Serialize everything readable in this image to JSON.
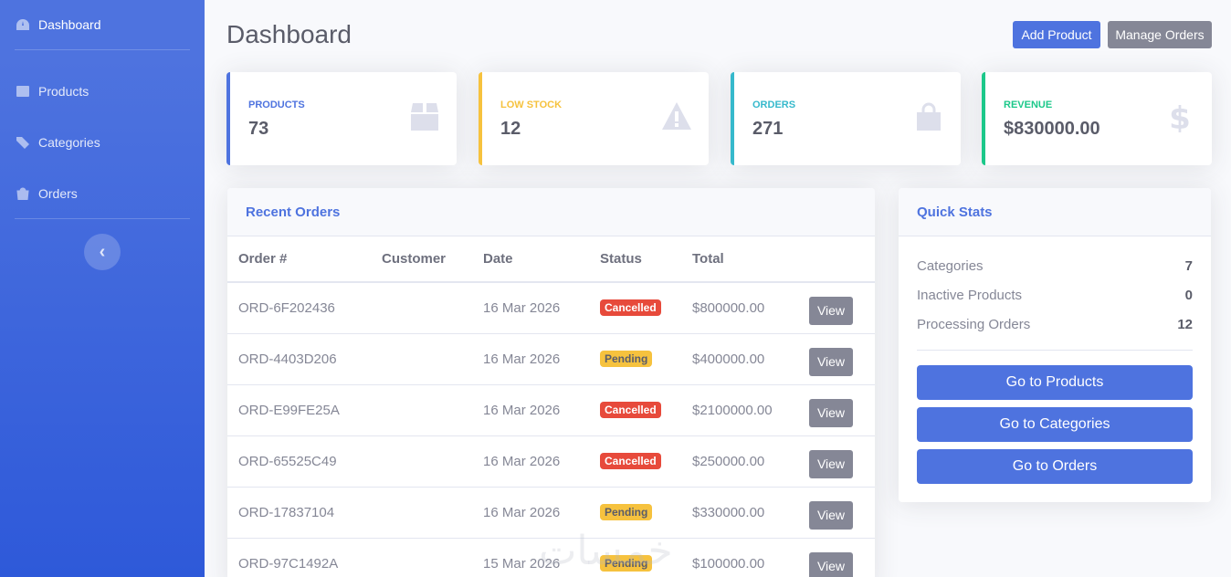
{
  "sidebar": {
    "items": [
      {
        "label": "Dashboard",
        "icon": "dashboard-icon"
      },
      {
        "label": "Products",
        "icon": "products-icon"
      },
      {
        "label": "Categories",
        "icon": "tags-icon"
      },
      {
        "label": "Orders",
        "icon": "bag-icon"
      }
    ],
    "toggle_icon": "chevron-left-icon",
    "toggle_glyph": "‹"
  },
  "header": {
    "title": "Dashboard",
    "add_product_label": "Add Product",
    "manage_orders_label": "Manage Orders"
  },
  "stats": [
    {
      "label": "PRODUCTS",
      "value": "73",
      "color": "#4e73df",
      "icon": "box-icon"
    },
    {
      "label": "LOW STOCK",
      "value": "12",
      "color": "#f6c23e",
      "icon": "warning-icon"
    },
    {
      "label": "ORDERS",
      "value": "271",
      "color": "#36b9cc",
      "icon": "shopping-bag-icon"
    },
    {
      "label": "REVENUE",
      "value": "$830000.00",
      "color": "#1cc88a",
      "icon": "dollar-icon"
    }
  ],
  "recent_orders": {
    "title": "Recent Orders",
    "columns": [
      "Order #",
      "Customer",
      "Date",
      "Status",
      "Total"
    ],
    "view_label": "View",
    "rows": [
      {
        "order": "ORD-6F202436",
        "customer": "",
        "date": "16 Mar 2026",
        "status": "Cancelled",
        "total": "$800000.00"
      },
      {
        "order": "ORD-4403D206",
        "customer": "",
        "date": "16 Mar 2026",
        "status": "Pending",
        "total": "$400000.00"
      },
      {
        "order": "ORD-E99FE25A",
        "customer": "",
        "date": "16 Mar 2026",
        "status": "Cancelled",
        "total": "$2100000.00"
      },
      {
        "order": "ORD-65525C49",
        "customer": "",
        "date": "16 Mar 2026",
        "status": "Cancelled",
        "total": "$250000.00"
      },
      {
        "order": "ORD-17837104",
        "customer": "",
        "date": "16 Mar 2026",
        "status": "Pending",
        "total": "$330000.00"
      },
      {
        "order": "ORD-97C1492A",
        "customer": "",
        "date": "15 Mar 2026",
        "status": "Pending",
        "total": "$100000.00"
      }
    ]
  },
  "quick_stats": {
    "title": "Quick Stats",
    "rows": [
      {
        "label": "Categories",
        "value": "7"
      },
      {
        "label": "Inactive Products",
        "value": "0"
      },
      {
        "label": "Processing Orders",
        "value": "12"
      }
    ],
    "buttons": [
      "Go to Products",
      "Go to Categories",
      "Go to Orders"
    ]
  },
  "watermark": "خمسات",
  "colors": {
    "primary": "#4e73df",
    "secondary": "#858796",
    "warning": "#f6c23e",
    "info": "#36b9cc",
    "success": "#1cc88a",
    "danger": "#e74a3b"
  }
}
